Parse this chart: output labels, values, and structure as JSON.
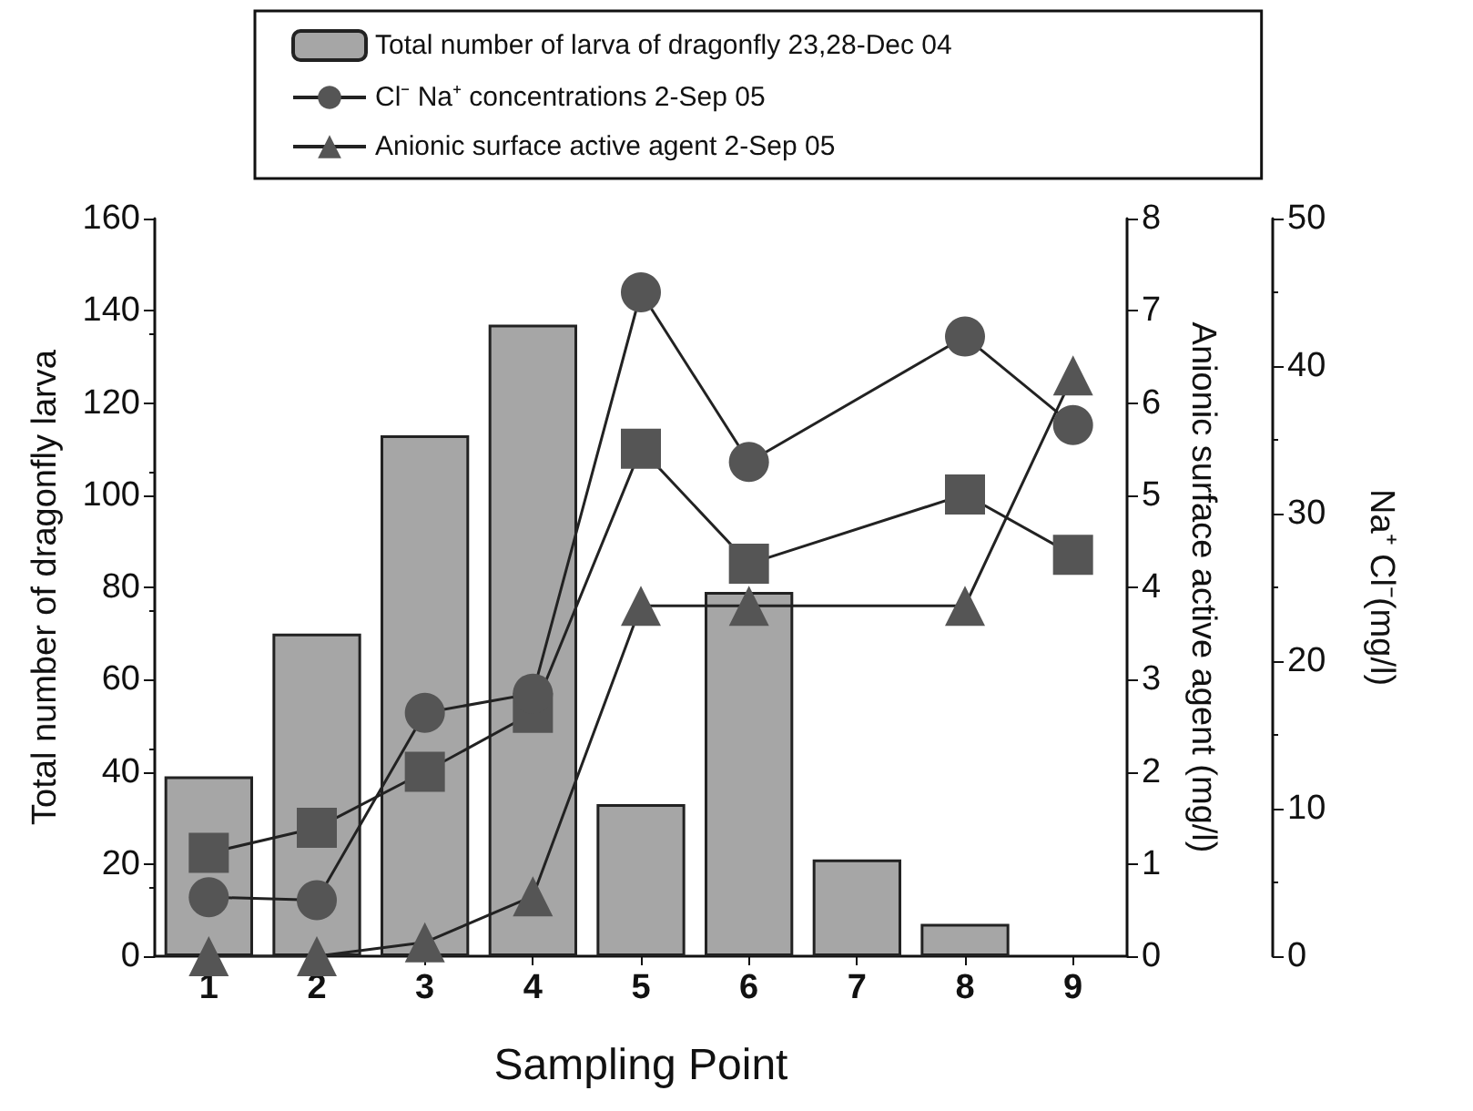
{
  "chart_data": {
    "type": "bar",
    "xlabel": "Sampling Point",
    "ylabel": "Total number of dragonfly larva",
    "y2label": "Anionic surface active agent (mg/l)",
    "y3label": "Na⁺ Cl⁻(mg/l)",
    "categories": [
      "1",
      "2",
      "3",
      "4",
      "5",
      "6",
      "7",
      "8",
      "9"
    ],
    "series": [
      {
        "name": "Total number of larva of dragonfly 23,28-Dec 04",
        "color": "#a6a6a6",
        "values": [
          39,
          70,
          113,
          137,
          33,
          79,
          21,
          7,
          0
        ]
      },
      {
        "name": "Cl⁻ Na⁺ concentrations 2-Sep 05",
        "type": "line",
        "axis": "y3",
        "marker": "circle",
        "color": "#555555",
        "values": [
          4,
          3.8,
          16.5,
          17.8,
          45,
          33.5,
          null,
          42,
          36
        ]
      },
      {
        "type": "line",
        "axis": "y3",
        "marker": "square",
        "color": "#555555",
        "values": [
          7,
          8.7,
          12.5,
          16.5,
          34.4,
          26.6,
          null,
          31.3,
          27.2
        ]
      },
      {
        "name": "Anionic surface active agent 2-Sep 05",
        "type": "line",
        "axis": "y2",
        "marker": "triangle",
        "color": "#555555",
        "values": [
          0,
          0,
          0.15,
          0.65,
          3.8,
          3.8,
          null,
          3.8,
          6.3
        ]
      }
    ],
    "ylim": [
      0,
      160
    ],
    "yticks": [
      0,
      20,
      40,
      60,
      80,
      100,
      120,
      140,
      160
    ],
    "y2lim": [
      0,
      8
    ],
    "y2ticks": [
      0,
      1,
      2,
      3,
      4,
      5,
      6,
      7,
      8
    ],
    "y3lim": [
      0,
      50
    ],
    "y3ticks": [
      0,
      10,
      20,
      30,
      40,
      50
    ],
    "legend": "top",
    "grid": false
  }
}
